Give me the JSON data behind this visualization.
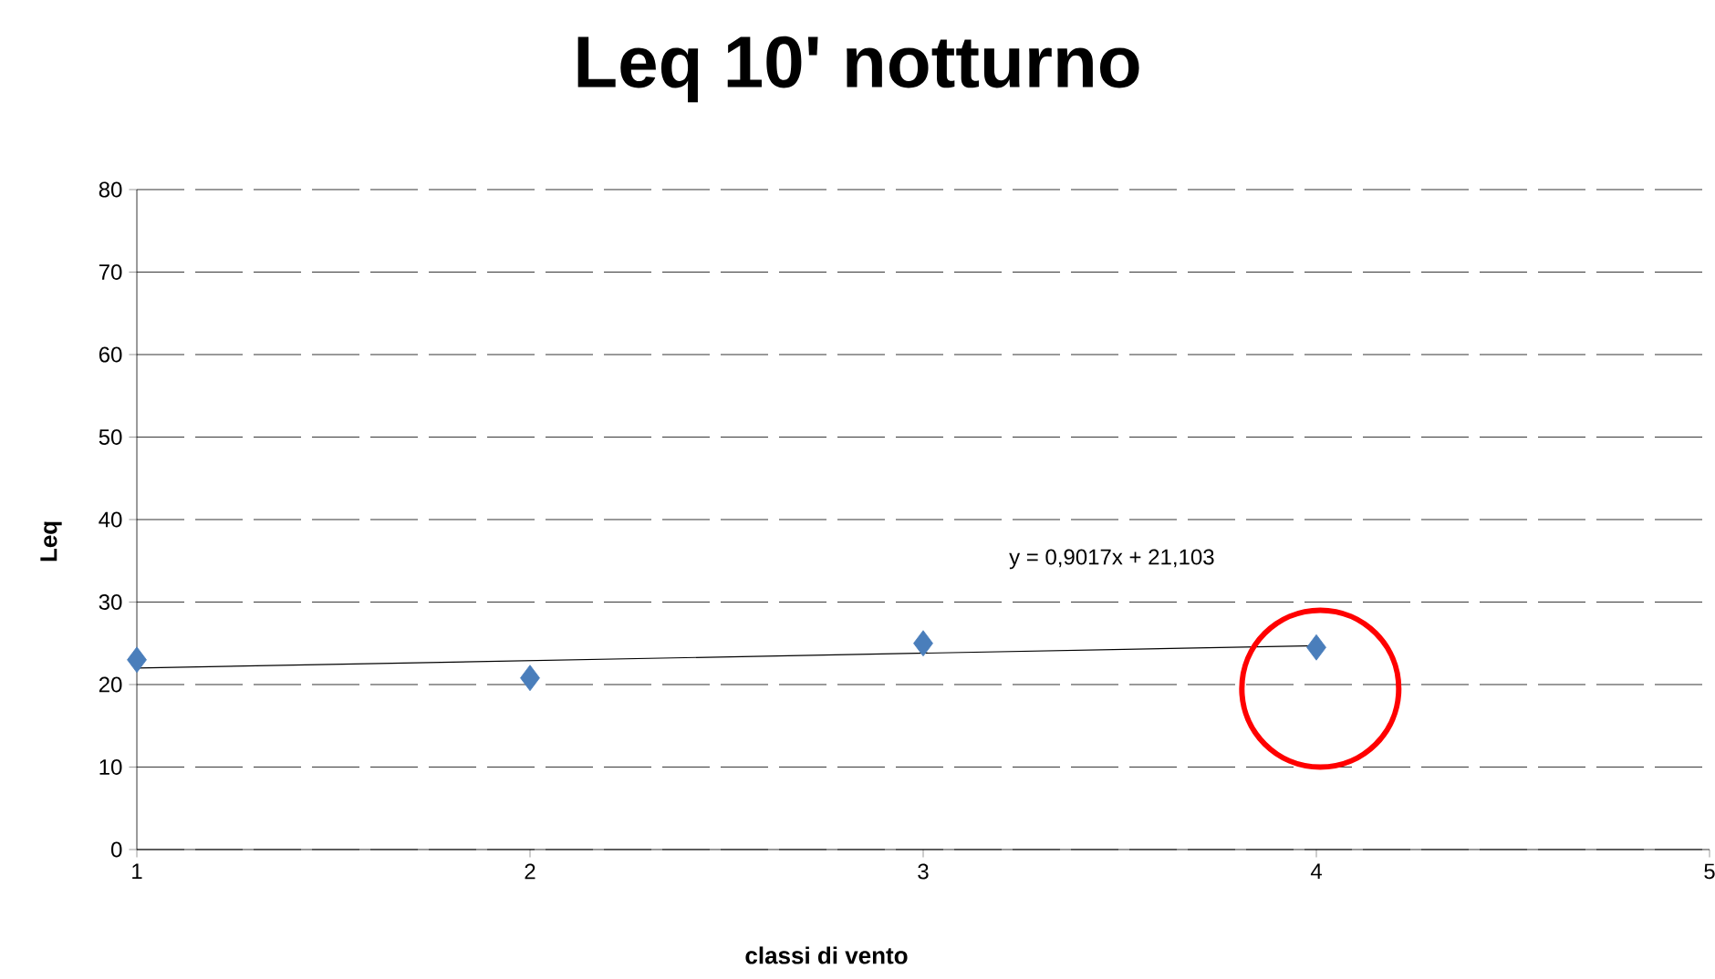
{
  "chart_data": {
    "type": "scatter",
    "title": "Leq 10' notturno",
    "xlabel": "classi di vento",
    "ylabel": "Leq",
    "series": [
      {
        "color": "#4a7ebb",
        "x": [
          1,
          2,
          3,
          4
        ],
        "values": [
          23.0,
          20.8,
          25.0,
          24.5
        ],
        "marker": "diamond"
      },
      {
        "type": "line",
        "color": "#000000",
        "x": [
          1,
          4
        ],
        "values": [
          22.0,
          24.7
        ],
        "marker": "none",
        "line_style": "solid"
      }
    ],
    "annotations": [
      "y = 0,9017x + 21,103"
    ],
    "xlim": [
      1,
      5
    ],
    "xticks": [
      1,
      2,
      3,
      4,
      5
    ],
    "ylim": [
      0,
      80
    ],
    "yticks": [
      0,
      10,
      20,
      30,
      40,
      50,
      60,
      70,
      80
    ],
    "grid": "y"
  }
}
